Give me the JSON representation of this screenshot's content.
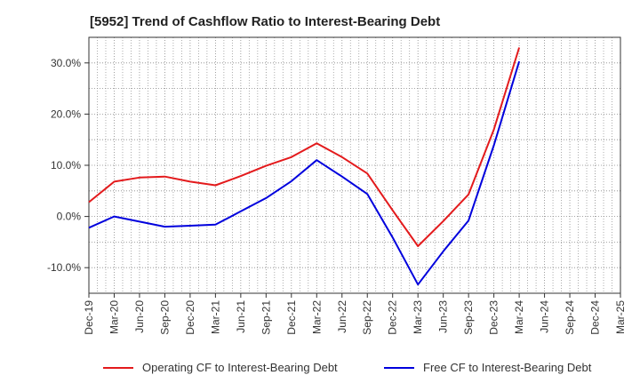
{
  "chart_data": {
    "type": "line",
    "title": "[5952]  Trend of Cashflow Ratio to Interest-Bearing Debt",
    "xlabel": "",
    "ylabel": "",
    "x": [
      "Dec-19",
      "Mar-20",
      "Jun-20",
      "Sep-20",
      "Dec-20",
      "Mar-21",
      "Jun-21",
      "Sep-21",
      "Dec-21",
      "Mar-22",
      "Jun-22",
      "Sep-22",
      "Dec-22",
      "Mar-23",
      "Jun-23",
      "Sep-23",
      "Dec-23",
      "Mar-24",
      "Jun-24",
      "Sep-24",
      "Dec-24",
      "Mar-25"
    ],
    "ylim": [
      -15,
      35
    ],
    "yticks": [
      -10,
      0,
      10,
      20,
      30
    ],
    "ytick_labels": [
      "-10.0%",
      "0.0%",
      "10.0%",
      "20.0%",
      "30.0%"
    ],
    "grid": true,
    "legend_position": "bottom",
    "series": [
      {
        "name": "Operating CF to Interest-Bearing Debt",
        "color": "#e31a1c",
        "values": [
          2.8,
          6.8,
          7.6,
          7.8,
          6.8,
          6.1,
          7.9,
          9.9,
          11.6,
          14.3,
          11.6,
          8.4,
          1.2,
          -5.8,
          -0.9,
          4.3,
          17.0,
          33.0,
          null,
          null,
          null,
          null
        ]
      },
      {
        "name": "Free CF to Interest-Bearing Debt",
        "color": "#0000dd",
        "values": [
          -2.2,
          0.0,
          -1.0,
          -2.0,
          -1.8,
          -1.6,
          1.0,
          3.6,
          6.9,
          11.0,
          7.8,
          4.4,
          -4.1,
          -13.3,
          -6.8,
          -0.8,
          13.9,
          30.3,
          null,
          null,
          null,
          null
        ]
      }
    ]
  }
}
